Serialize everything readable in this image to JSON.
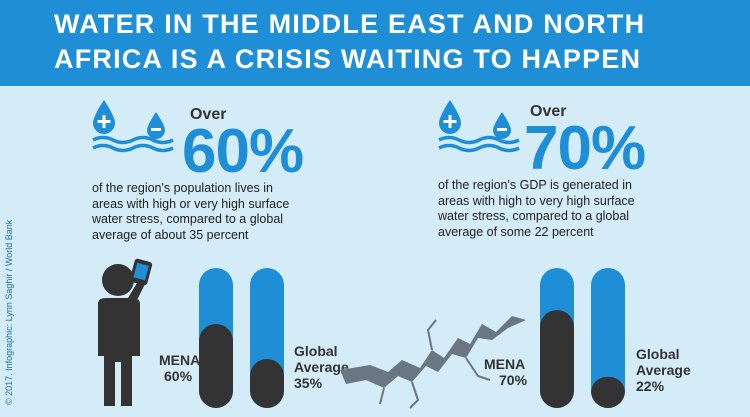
{
  "header": {
    "title_line1": "WATER IN THE MIDDLE EAST AND NORTH",
    "title_line2": "AFRICA IS A CRISIS WAITING TO HAPPEN"
  },
  "credit": "© 2017. Infographic: Lynn Saghir / World Bank",
  "stats": [
    {
      "prefix": "Over",
      "value": "60%",
      "desc_lines": [
        "of the region's population lives in",
        "areas with high or very high surface",
        "water stress, compared to a global",
        "average of about 35 percent"
      ],
      "bars": [
        {
          "label_line1": "MENA",
          "label_line2": "60%",
          "fraction": 0.6
        },
        {
          "label_line1": "Global",
          "label_line2": "Average",
          "label_line3": "35%",
          "fraction": 0.35
        }
      ]
    },
    {
      "prefix": "Over",
      "value": "70%",
      "desc_lines": [
        "of the region's GDP is generated in",
        "areas with high to very high surface",
        "water stress, compared to a global",
        "average of some 22 percent"
      ],
      "bars": [
        {
          "label_line1": "MENA",
          "label_line2": "70%",
          "fraction": 0.7
        },
        {
          "label_line1": "Global",
          "label_line2": "Average",
          "label_line3": "22%",
          "fraction": 0.22
        }
      ]
    }
  ],
  "icons": {
    "water_drops": "water-drops-icon",
    "person": "person-phone-icon",
    "crack": "ground-crack-icon"
  },
  "colors": {
    "accent": "#1e8fd6",
    "background": "#d4ebf8",
    "dark": "#333333"
  }
}
